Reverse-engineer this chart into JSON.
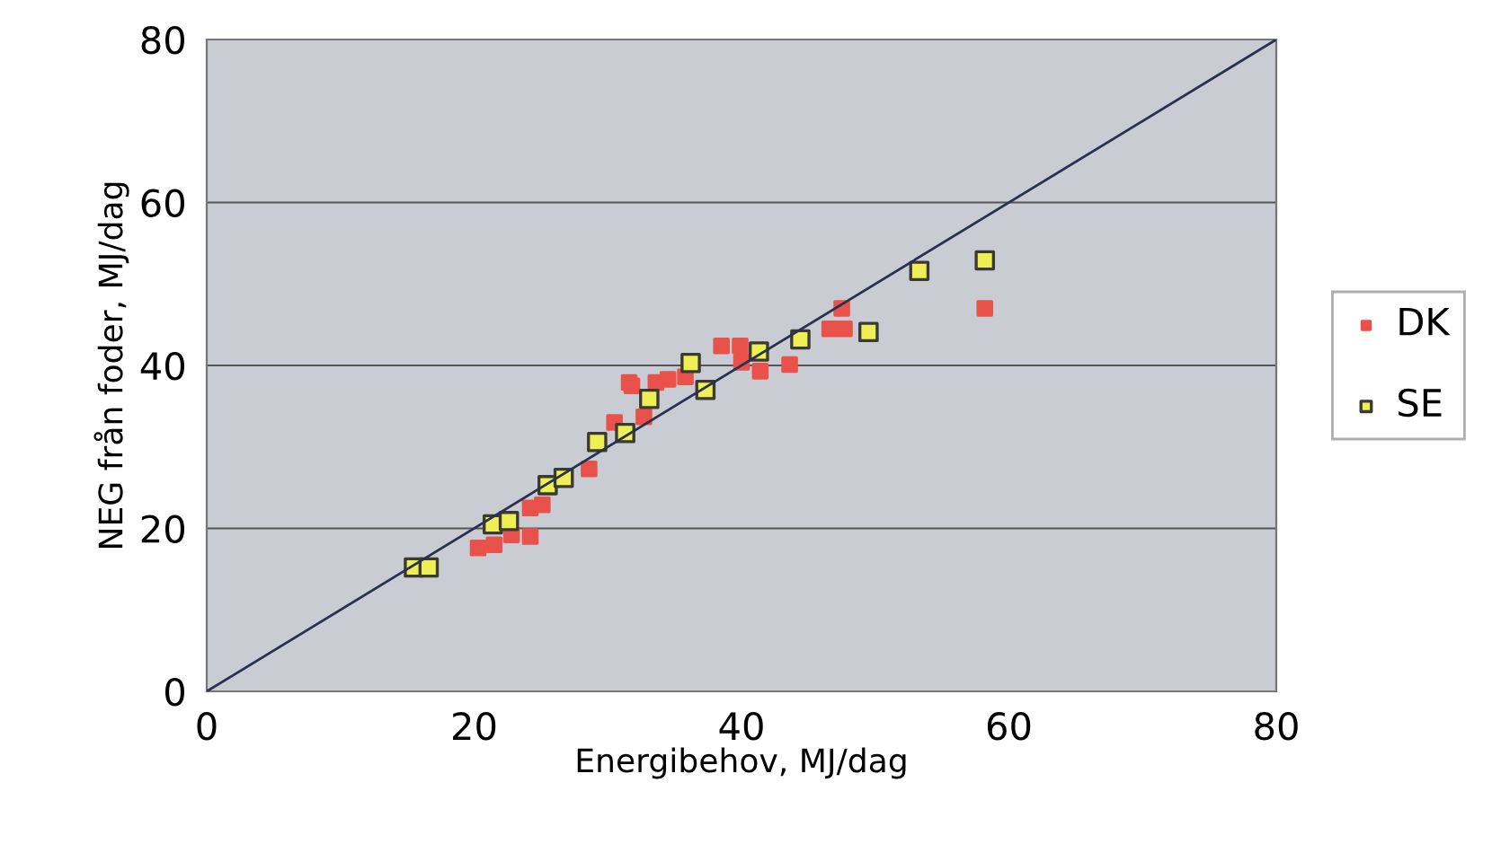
{
  "chart_data": {
    "type": "scatter",
    "xlabel": "Energibehov, MJ/dag",
    "ylabel": "NEG från foder, MJ/dag",
    "xlim": [
      0,
      80
    ],
    "ylim": [
      0,
      80
    ],
    "xticks": [
      0,
      20,
      40,
      60,
      80
    ],
    "yticks": [
      0,
      20,
      40,
      60,
      80
    ],
    "grid": "y",
    "legend": "right",
    "marker": "square",
    "series": [
      {
        "name": "DK",
        "color": "#e8524a",
        "x": [
          20.3,
          21.5,
          22.8,
          24.2,
          24.2,
          25.1,
          28.6,
          30.5,
          32.7,
          31.6,
          31.8,
          33.6,
          34.5,
          35.8,
          38.5,
          39.9,
          40.0,
          41.4,
          43.6,
          46.6,
          47.7,
          47.5,
          58.2
        ],
        "values": [
          17.6,
          18.0,
          19.2,
          19.0,
          22.5,
          22.9,
          27.3,
          33.0,
          33.7,
          37.9,
          37.5,
          37.9,
          38.3,
          38.6,
          42.4,
          42.4,
          40.4,
          39.3,
          40.1,
          44.5,
          44.5,
          47.0,
          47.0
        ]
      },
      {
        "name": "SE",
        "color": "#eeee55",
        "x": [
          15.5,
          16.6,
          21.4,
          22.6,
          25.5,
          26.7,
          29.2,
          31.3,
          33.1,
          36.2,
          37.3,
          41.3,
          44.4,
          49.5,
          53.3,
          58.2
        ],
        "values": [
          15.2,
          15.2,
          20.5,
          20.9,
          25.3,
          26.2,
          30.6,
          31.7,
          35.9,
          40.3,
          37.0,
          41.7,
          43.2,
          44.1,
          51.6,
          52.9
        ]
      },
      {
        "type": "line",
        "color": "#2a3050",
        "x": [
          0,
          80
        ],
        "values": [
          0,
          80
        ],
        "marker": "none"
      }
    ]
  }
}
